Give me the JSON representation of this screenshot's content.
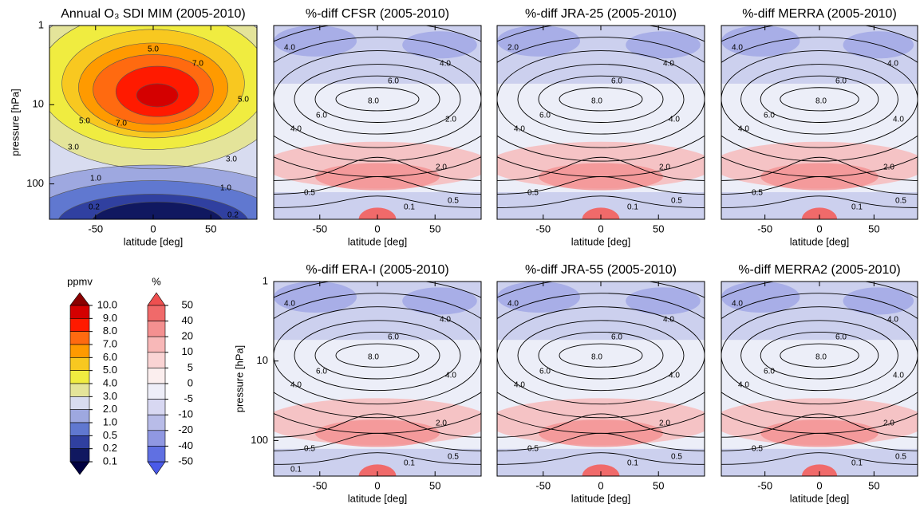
{
  "chart_data": [
    {
      "type": "contour",
      "title": "Annual O₃ SDI MIM (2005-2010)",
      "xlabel": "latitude [deg]",
      "ylabel": "pressure [hPa]",
      "xlim": [
        -90,
        90
      ],
      "xticks": [
        -50,
        0,
        50
      ],
      "ylim": [
        1,
        280
      ],
      "yticks": [
        1,
        10,
        100
      ],
      "y_log": true,
      "style": "ozone",
      "contour_labels": [
        "5.0",
        "7.0",
        "5.0",
        "5.0",
        "7.0",
        "3.0",
        "3.0",
        "1.0",
        "1.0",
        "0.2",
        "0.2"
      ]
    },
    {
      "type": "contour",
      "title": "%-diff CFSR (2005-2010)",
      "xlabel": "latitude [deg]",
      "xlim": [
        -90,
        90
      ],
      "xticks": [
        -50,
        0,
        50
      ],
      "ylim": [
        1,
        280
      ],
      "y_log": true,
      "style": "diff",
      "contour_labels": [
        "4.0",
        "4.0",
        "6.0",
        "8.0",
        "6.0",
        "4.0",
        "2.0",
        "2.0",
        "0.5",
        "0.1",
        "0.5"
      ]
    },
    {
      "type": "contour",
      "title": "%-diff JRA-25 (2005-2010)",
      "xlabel": "latitude [deg]",
      "xlim": [
        -90,
        90
      ],
      "xticks": [
        -50,
        0,
        50
      ],
      "ylim": [
        1,
        280
      ],
      "y_log": true,
      "style": "diff",
      "contour_labels": [
        "2.0",
        "4.0",
        "6.0",
        "8.0",
        "6.0",
        "4.0",
        "4.0",
        "2.0",
        "0.5",
        "0.1",
        "0.5"
      ]
    },
    {
      "type": "contour",
      "title": "%-diff MERRA (2005-2010)",
      "xlabel": "latitude [deg]",
      "xlim": [
        -90,
        90
      ],
      "xticks": [
        -50,
        0,
        50
      ],
      "ylim": [
        1,
        280
      ],
      "y_log": true,
      "style": "diff",
      "contour_labels": [
        "4.0",
        "4.0",
        "6.0",
        "8.0",
        "6.0",
        "4.0",
        "4.0",
        "2.0",
        "0.5",
        "0.1",
        "0.5"
      ]
    },
    {
      "type": "contour",
      "title": "%-diff ERA-I (2005-2010)",
      "xlabel": "latitude [deg]",
      "ylabel": "pressure [hPa]",
      "xlim": [
        -90,
        90
      ],
      "xticks": [
        -50,
        0,
        50
      ],
      "ylim": [
        1,
        280
      ],
      "yticks": [
        1,
        10,
        100
      ],
      "y_log": true,
      "style": "diff",
      "contour_labels": [
        "4.0",
        "4.0",
        "6.0",
        "8.0",
        "6.0",
        "4.0",
        "4.0",
        "2.0",
        "0.5",
        "0.1",
        "0.5",
        "0.1"
      ]
    },
    {
      "type": "contour",
      "title": "%-diff JRA-55 (2005-2010)",
      "xlabel": "latitude [deg]",
      "xlim": [
        -90,
        90
      ],
      "xticks": [
        -50,
        0,
        50
      ],
      "ylim": [
        1,
        280
      ],
      "y_log": true,
      "style": "diff",
      "contour_labels": [
        "4.0",
        "4.0",
        "6.0",
        "8.0",
        "6.0",
        "4.0",
        "4.0",
        "2.0",
        "0.5",
        "0.1",
        "0.5"
      ]
    },
    {
      "type": "contour",
      "title": "%-diff MERRA2 (2005-2010)",
      "xlabel": "latitude [deg]",
      "xlim": [
        -90,
        90
      ],
      "xticks": [
        -50,
        0,
        50
      ],
      "ylim": [
        1,
        280
      ],
      "y_log": true,
      "style": "diff",
      "contour_labels": [
        "4.0",
        "4.0",
        "6.0",
        "8.0",
        "6.0",
        "4.0",
        "4.0",
        "2.0",
        "0.5",
        "0.1",
        "0.5"
      ]
    }
  ],
  "colorbars": [
    {
      "label": "ppmv",
      "ticks": [
        {
          "value": 10,
          "label": "10.0"
        },
        {
          "value": 9,
          "label": "9.0"
        },
        {
          "value": 8,
          "label": "8.0"
        },
        {
          "value": 7,
          "label": "7.0"
        },
        {
          "value": 6,
          "label": "6.0"
        },
        {
          "value": 5,
          "label": "5.0"
        },
        {
          "value": 4,
          "label": "4.0"
        },
        {
          "value": 3,
          "label": "3.0"
        },
        {
          "value": 2,
          "label": "2.0"
        },
        {
          "value": 1,
          "label": "1.0"
        },
        0.5,
        0.2,
        0.1
      ],
      "colors": [
        "#d40000",
        "#ff1a00",
        "#ff6a10",
        "#ff9a00",
        "#f8c820",
        "#f0ec40",
        "#e4e49a",
        "#d8dcf0",
        "#9ea8e0",
        "#6078d0",
        "#3040a0",
        "#101860"
      ],
      "over_color": "#8b0000",
      "under_color": "#000040"
    },
    {
      "label": "%",
      "ticks": [
        50,
        40,
        20,
        10,
        5,
        0,
        -5,
        -10,
        -20,
        -40,
        -50
      ],
      "colors": [
        "#f06a6a",
        "#f49090",
        "#f8b8b8",
        "#fad4d4",
        "#fbeeee",
        "#eeeef8",
        "#d8d8f2",
        "#b8bce8",
        "#9098e2",
        "#6070e2"
      ],
      "over_color": "#ee5050",
      "under_color": "#4a5ae8"
    }
  ]
}
